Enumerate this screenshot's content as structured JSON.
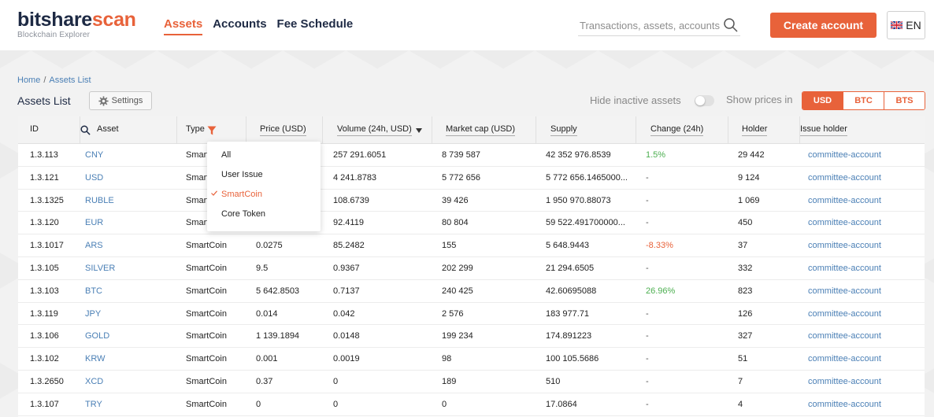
{
  "header": {
    "logo_main_dark": "bitshare",
    "logo_main_accent": "scan",
    "logo_sub": "Blockchain Explorer",
    "nav": [
      {
        "label": "Assets",
        "active": true
      },
      {
        "label": "Accounts",
        "active": false
      },
      {
        "label": "Fee Schedule",
        "active": false
      }
    ],
    "search_placeholder": "Transactions, assets, accounts",
    "create_label": "Create account",
    "lang_label": "EN"
  },
  "breadcrumb": {
    "home": "Home",
    "sep": "/",
    "current": "Assets List"
  },
  "page": {
    "title": "Assets List",
    "settings_label": "Settings",
    "hide_inactive_label": "Hide inactive assets",
    "hide_inactive_on": false,
    "show_prices_label": "Show prices in",
    "currencies": [
      {
        "label": "USD",
        "active": true
      },
      {
        "label": "BTC",
        "active": false
      },
      {
        "label": "BTS",
        "active": false
      }
    ]
  },
  "table": {
    "headers": {
      "id": "ID",
      "asset": "Asset",
      "type": "Type",
      "price": "Price (USD)",
      "volume": "Volume (24h, USD)",
      "mcap": "Market cap (USD)",
      "supply": "Supply",
      "change": "Change (24h)",
      "holder": "Holder",
      "issuer": "Issue holder"
    },
    "rows": [
      {
        "id": "1.3.113",
        "asset": "CNY",
        "type": "SmartCoin",
        "price": "",
        "volume": "257 291.6051",
        "mcap": "8 739 587",
        "supply": "42 352 976.8539",
        "change": "1.5%",
        "change_kind": "pos",
        "holder": "29 442",
        "issuer": "committee-account"
      },
      {
        "id": "1.3.121",
        "asset": "USD",
        "type": "SmartCoin",
        "price": "",
        "volume": "4 241.8783",
        "mcap": "5 772 656",
        "supply": "5 772 656.1465000...",
        "change": "-",
        "change_kind": "dim",
        "holder": "9 124",
        "issuer": "committee-account"
      },
      {
        "id": "1.3.1325",
        "asset": "RUBLE",
        "type": "SmartCoin",
        "price": "",
        "volume": "108.6739",
        "mcap": "39 426",
        "supply": "1 950 970.88073",
        "change": "-",
        "change_kind": "dim",
        "holder": "1 069",
        "issuer": "committee-account"
      },
      {
        "id": "1.3.120",
        "asset": "EUR",
        "type": "SmartCoin",
        "price": "",
        "volume": "92.4119",
        "mcap": "80 804",
        "supply": "59 522.491700000...",
        "change": "-",
        "change_kind": "dim",
        "holder": "450",
        "issuer": "committee-account"
      },
      {
        "id": "1.3.1017",
        "asset": "ARS",
        "type": "SmartCoin",
        "price": "0.0275",
        "volume": "85.2482",
        "mcap": "155",
        "supply": "5 648.9443",
        "change": "-8.33%",
        "change_kind": "neg",
        "holder": "37",
        "issuer": "committee-account"
      },
      {
        "id": "1.3.105",
        "asset": "SILVER",
        "type": "SmartCoin",
        "price": "9.5",
        "volume": "0.9367",
        "mcap": "202 299",
        "supply": "21 294.6505",
        "change": "-",
        "change_kind": "dim",
        "holder": "332",
        "issuer": "committee-account"
      },
      {
        "id": "1.3.103",
        "asset": "BTC",
        "type": "SmartCoin",
        "price": "5 642.8503",
        "volume": "0.7137",
        "mcap": "240 425",
        "supply": "42.60695088",
        "change": "26.96%",
        "change_kind": "pos",
        "holder": "823",
        "issuer": "committee-account"
      },
      {
        "id": "1.3.119",
        "asset": "JPY",
        "type": "SmartCoin",
        "price": "0.014",
        "volume": "0.042",
        "mcap": "2 576",
        "supply": "183 977.71",
        "change": "-",
        "change_kind": "dim",
        "holder": "126",
        "issuer": "committee-account"
      },
      {
        "id": "1.3.106",
        "asset": "GOLD",
        "type": "SmartCoin",
        "price": "1 139.1894",
        "volume": "0.0148",
        "mcap": "199 234",
        "supply": "174.891223",
        "change": "-",
        "change_kind": "dim",
        "holder": "327",
        "issuer": "committee-account"
      },
      {
        "id": "1.3.102",
        "asset": "KRW",
        "type": "SmartCoin",
        "price": "0.001",
        "volume": "0.0019",
        "mcap": "98",
        "supply": "100 105.5686",
        "change": "-",
        "change_kind": "dim",
        "holder": "51",
        "issuer": "committee-account"
      },
      {
        "id": "1.3.2650",
        "asset": "XCD",
        "type": "SmartCoin",
        "price": "0.37",
        "volume": "0",
        "mcap": "189",
        "supply": "510",
        "change": "-",
        "change_kind": "dim",
        "holder": "7",
        "issuer": "committee-account"
      },
      {
        "id": "1.3.107",
        "asset": "TRY",
        "type": "SmartCoin",
        "price": "0",
        "volume": "0",
        "mcap": "0",
        "supply": "17.0864",
        "change": "-",
        "change_kind": "dim",
        "holder": "4",
        "issuer": "committee-account"
      }
    ]
  },
  "type_filter": {
    "options": [
      {
        "label": "All",
        "selected": false
      },
      {
        "label": "User Issue",
        "selected": false
      },
      {
        "label": "SmartCoin",
        "selected": true
      },
      {
        "label": "Core Token",
        "selected": false
      }
    ]
  },
  "colors": {
    "accent": "#e8623a",
    "link": "#4a7fb5",
    "positive": "#4caf50",
    "brand_dark": "#1e2a44"
  },
  "icons": {
    "search": "magnifier-icon",
    "settings": "gear-icon",
    "filter": "filter-icon",
    "sort": "caret-down-icon",
    "flag": "uk-flag-icon",
    "check": "check-icon"
  }
}
